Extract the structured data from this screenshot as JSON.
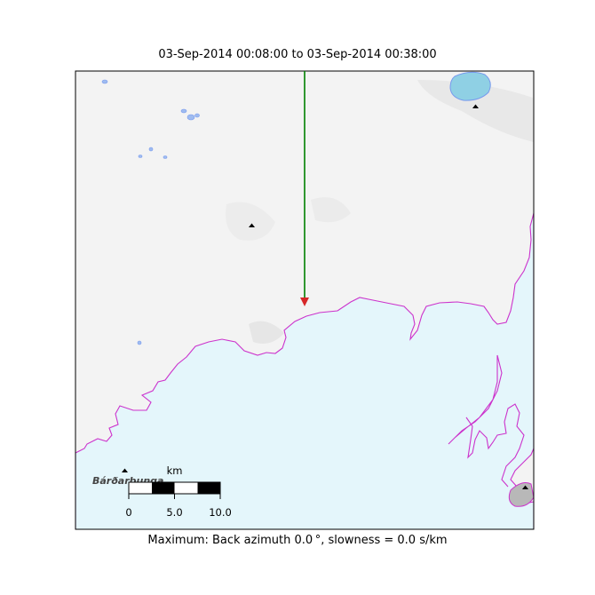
{
  "title": "03-Sep-2014 00:08:00 to 03-Sep-2014 00:38:00",
  "footer": "Maximum: Back azimuth 0.0 °, slowness = 0.0 s/km",
  "scale_bar": {
    "unit": "km",
    "ticks": [
      "0",
      "5.0",
      "10.0"
    ]
  },
  "place_label": "Bárðarbunga",
  "back_azimuth_deg": 0.0,
  "slowness_s_per_km": 0.0,
  "colors": {
    "arrow": "#008000",
    "arrow_head": "#d62728",
    "glacier_outline": "#cc33cc",
    "glacier_fill": "#e4f6fb",
    "lake_fill": "#8fd0e4",
    "water_outline": "#7799ee",
    "terrain": "#f3f3f3"
  },
  "icons": [
    "volcano-icon"
  ]
}
